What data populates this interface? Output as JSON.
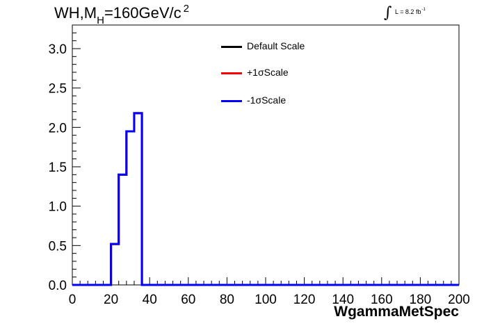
{
  "header": {
    "title_main": "WH,M",
    "title_sub": "H",
    "title_rest": "=160GeV/c",
    "title_sup": "2",
    "lumi_text": "L = 8.2 fb",
    "lumi_sup": "-1"
  },
  "legend": {
    "items": [
      {
        "label": "Default Scale",
        "color": "#000000"
      },
      {
        "label": "+1σScale",
        "color": "#ff0000"
      },
      {
        "label": "-1σScale",
        "color": "#0000ff"
      }
    ]
  },
  "chart_data": {
    "type": "line",
    "title": "WH,M_H=160GeV/c^2",
    "xlabel": "WgammaMetSpec",
    "ylabel": "",
    "xlim": [
      0,
      200
    ],
    "ylim": [
      0,
      3.3
    ],
    "x_ticks": [
      0,
      20,
      40,
      60,
      80,
      100,
      120,
      140,
      160,
      180,
      200
    ],
    "y_ticks": [
      0.0,
      0.5,
      1.0,
      1.5,
      2.0,
      2.5,
      3.0
    ],
    "y_tick_labels": [
      "0.0",
      "0.5",
      "1.0",
      "1.5",
      "2.0",
      "2.5",
      "3.0"
    ],
    "bin_edges": [
      0,
      4,
      8,
      12,
      16,
      20,
      24,
      28,
      32,
      36,
      40,
      44,
      48,
      52,
      56,
      60,
      64,
      68,
      72,
      76,
      80,
      84,
      88,
      92,
      96,
      100,
      104,
      108,
      112,
      116,
      120,
      124,
      128,
      132,
      136,
      140,
      144,
      148,
      152,
      156,
      160,
      164,
      168,
      172,
      176,
      180,
      184,
      188,
      192,
      196,
      200
    ],
    "series": [
      {
        "name": "Default Scale",
        "color": "#000000",
        "values": [
          0,
          0,
          0,
          0,
          0,
          0.52,
          1.4,
          1.95,
          2.18,
          0,
          0,
          0,
          0,
          0,
          0,
          0,
          0,
          0,
          0,
          0,
          0,
          0,
          0,
          0,
          0,
          0,
          0,
          0,
          0,
          0,
          0,
          0,
          0,
          0,
          0,
          0,
          0,
          0,
          0,
          0,
          0,
          0,
          0,
          0,
          0,
          0,
          0,
          0,
          0,
          0
        ]
      },
      {
        "name": "+1σScale",
        "color": "#ff0000",
        "values": [
          0,
          0,
          0,
          0,
          0,
          0.52,
          1.4,
          1.95,
          2.18,
          0,
          0,
          0,
          0,
          0,
          0,
          0,
          0,
          0,
          0,
          0,
          0,
          0,
          0,
          0,
          0,
          0,
          0,
          0,
          0,
          0,
          0,
          0,
          0,
          0,
          0,
          0,
          0,
          0,
          0,
          0,
          0,
          0,
          0,
          0,
          0,
          0,
          0,
          0,
          0,
          0
        ]
      },
      {
        "name": "-1σScale",
        "color": "#0000ff",
        "values": [
          0,
          0,
          0,
          0,
          0,
          0.52,
          1.4,
          1.95,
          2.18,
          0,
          0,
          0,
          0,
          0,
          0,
          0,
          0,
          0,
          0,
          0,
          0,
          0,
          0,
          0,
          0,
          0,
          0,
          0,
          0,
          0,
          0,
          0,
          0,
          0,
          0,
          0,
          0,
          0,
          0,
          0,
          0,
          0,
          0,
          0,
          0,
          0,
          0,
          0,
          0,
          0
        ]
      }
    ]
  }
}
